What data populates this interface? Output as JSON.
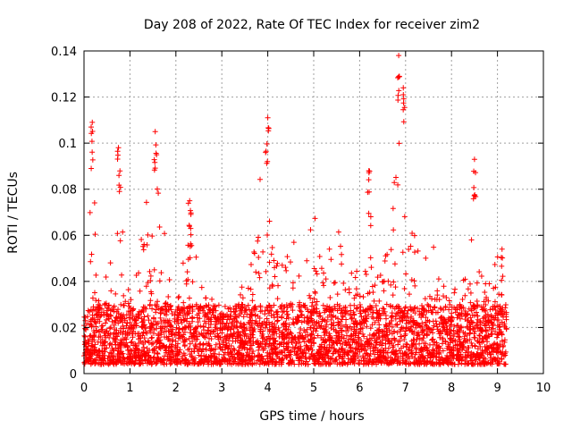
{
  "chart_data": {
    "type": "scatter",
    "title": "Day 208 of 2022, Rate Of TEC Index for receiver zim2",
    "xlabel": "GPS time / hours",
    "ylabel": "ROTI / TECUs",
    "xlim": [
      0,
      10
    ],
    "ylim": [
      0,
      0.14
    ],
    "xticks": [
      "0",
      "1",
      "2",
      "3",
      "4",
      "5",
      "6",
      "7",
      "8",
      "9",
      "10"
    ],
    "yticks": [
      "0",
      "0.02",
      "0.04",
      "0.06",
      "0.08",
      "0.1",
      "0.12",
      "0.14"
    ],
    "grid": true,
    "marker": "+",
    "color": "#ff0000",
    "series": [
      {
        "name": "ROTI",
        "x_range": [
          0.0,
          9.2
        ],
        "baseline_range": [
          0.004,
          0.03
        ],
        "envelope": [
          [
            0.0,
            0.027
          ],
          [
            0.1,
            0.036
          ],
          [
            0.15,
            0.095
          ],
          [
            0.2,
            0.108
          ],
          [
            0.3,
            0.062
          ],
          [
            0.4,
            0.052
          ],
          [
            0.5,
            0.042
          ],
          [
            0.6,
            0.05
          ],
          [
            0.7,
            0.08
          ],
          [
            0.75,
            0.098
          ],
          [
            0.85,
            0.071
          ],
          [
            1.0,
            0.035
          ],
          [
            1.2,
            0.049
          ],
          [
            1.35,
            0.081
          ],
          [
            1.45,
            0.05
          ],
          [
            1.55,
            0.105
          ],
          [
            1.7,
            0.07
          ],
          [
            1.9,
            0.036
          ],
          [
            2.1,
            0.04
          ],
          [
            2.3,
            0.074
          ],
          [
            2.5,
            0.044
          ],
          [
            2.7,
            0.03
          ],
          [
            2.9,
            0.036
          ],
          [
            3.1,
            0.025
          ],
          [
            3.3,
            0.03
          ],
          [
            3.5,
            0.042
          ],
          [
            3.7,
            0.056
          ],
          [
            3.85,
            0.093
          ],
          [
            4.0,
            0.111
          ],
          [
            4.1,
            0.064
          ],
          [
            4.3,
            0.049
          ],
          [
            4.5,
            0.056
          ],
          [
            4.7,
            0.06
          ],
          [
            4.9,
            0.06
          ],
          [
            5.0,
            0.072
          ],
          [
            5.2,
            0.049
          ],
          [
            5.5,
            0.065
          ],
          [
            5.7,
            0.052
          ],
          [
            5.9,
            0.042
          ],
          [
            6.1,
            0.06
          ],
          [
            6.2,
            0.088
          ],
          [
            6.3,
            0.054
          ],
          [
            6.5,
            0.042
          ],
          [
            6.7,
            0.07
          ],
          [
            6.85,
            0.138
          ],
          [
            6.95,
            0.123
          ],
          [
            7.05,
            0.08
          ],
          [
            7.2,
            0.06
          ],
          [
            7.4,
            0.05
          ],
          [
            7.6,
            0.056
          ],
          [
            7.8,
            0.04
          ],
          [
            8.0,
            0.035
          ],
          [
            8.2,
            0.04
          ],
          [
            8.4,
            0.045
          ],
          [
            8.5,
            0.092
          ],
          [
            8.6,
            0.05
          ],
          [
            8.8,
            0.04
          ],
          [
            9.0,
            0.054
          ],
          [
            9.2,
            0.025
          ]
        ],
        "labeled_peaks": [
          [
            0.18,
            0.109
          ],
          [
            0.75,
            0.098
          ],
          [
            1.55,
            0.105
          ],
          [
            2.3,
            0.075
          ],
          [
            4.0,
            0.111
          ],
          [
            6.2,
            0.088
          ],
          [
            6.85,
            0.138
          ],
          [
            6.95,
            0.124
          ],
          [
            8.5,
            0.093
          ],
          [
            9.1,
            0.054
          ]
        ]
      }
    ]
  }
}
